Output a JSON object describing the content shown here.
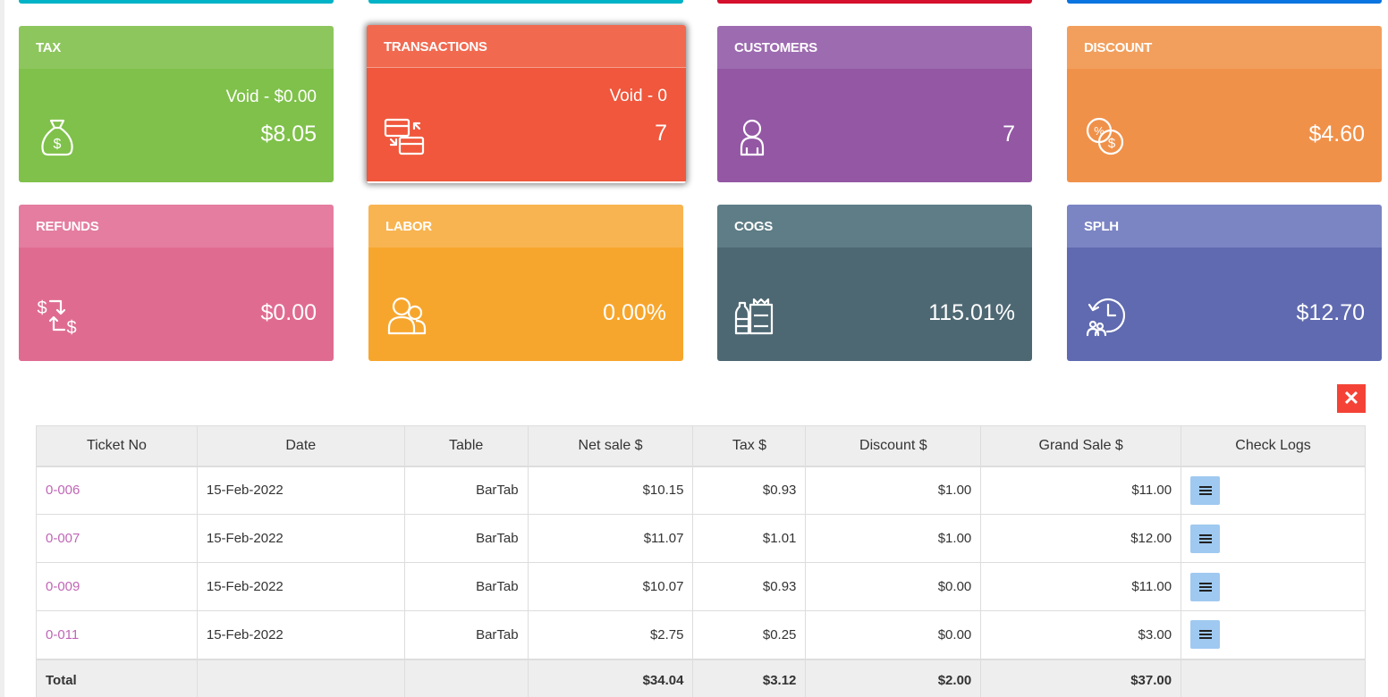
{
  "top_strips": [
    {
      "color": "#00b3c6"
    },
    {
      "color": "#00b3c6"
    },
    {
      "color": "#d50f2e"
    },
    {
      "color": "#0a74e0"
    }
  ],
  "cards": [
    {
      "title": "TAX",
      "sub": "Void - $0.00",
      "value": "$8.05",
      "icon": "money-bag-icon",
      "header_color": "#8ec65e",
      "body_color": "#7fc14a"
    },
    {
      "title": "TRANSACTIONS",
      "sub": "Void - 0",
      "value": "7",
      "icon": "card-exchange-icon",
      "header_color": "#f16a50",
      "body_color": "#f0573c"
    },
    {
      "title": "CUSTOMERS",
      "sub": "",
      "value": "7",
      "icon": "person-icon",
      "header_color": "#9d6bb0",
      "body_color": "#9357a4"
    },
    {
      "title": "DISCOUNT",
      "sub": "",
      "value": "$4.60",
      "icon": "percent-coin-icon",
      "header_color": "#f29f5d",
      "body_color": "#f0914a"
    },
    {
      "title": "REFUNDS",
      "sub": "",
      "value": "$0.00",
      "icon": "refund-arrows-icon",
      "header_color": "#e47da0",
      "body_color": "#e06b91"
    },
    {
      "title": "LABOR",
      "sub": "",
      "value": "0.00%",
      "icon": "workers-icon",
      "header_color": "#f8b450",
      "body_color": "#f7a62d"
    },
    {
      "title": "COGS",
      "sub": "",
      "value": "115.01%",
      "icon": "groceries-icon",
      "header_color": "#5e7d86",
      "body_color": "#4e6873"
    },
    {
      "title": "SPLH",
      "sub": "",
      "value": "$12.70",
      "icon": "clock-people-icon",
      "header_color": "#7b85c4",
      "body_color": "#5f6ab0"
    }
  ],
  "close_label": "✕",
  "table": {
    "headers": [
      "Ticket No",
      "Date",
      "Table",
      "Net sale $",
      "Tax $",
      "Discount $",
      "Grand Sale $",
      "Check Logs"
    ],
    "rows": [
      {
        "ticket": "0-006",
        "date": "15-Feb-2022",
        "table": "BarTab",
        "net": "$10.15",
        "tax": "$0.93",
        "discount": "$1.00",
        "grand": "$11.00"
      },
      {
        "ticket": "0-007",
        "date": "15-Feb-2022",
        "table": "BarTab",
        "net": "$11.07",
        "tax": "$1.01",
        "discount": "$1.00",
        "grand": "$12.00"
      },
      {
        "ticket": "0-009",
        "date": "15-Feb-2022",
        "table": "BarTab",
        "net": "$10.07",
        "tax": "$0.93",
        "discount": "$0.00",
        "grand": "$11.00"
      },
      {
        "ticket": "0-011",
        "date": "15-Feb-2022",
        "table": "BarTab",
        "net": "$2.75",
        "tax": "$0.25",
        "discount": "$0.00",
        "grand": "$3.00"
      }
    ],
    "total": {
      "label": "Total",
      "net": "$34.04",
      "tax": "$3.12",
      "discount": "$2.00",
      "grand": "$37.00"
    }
  }
}
